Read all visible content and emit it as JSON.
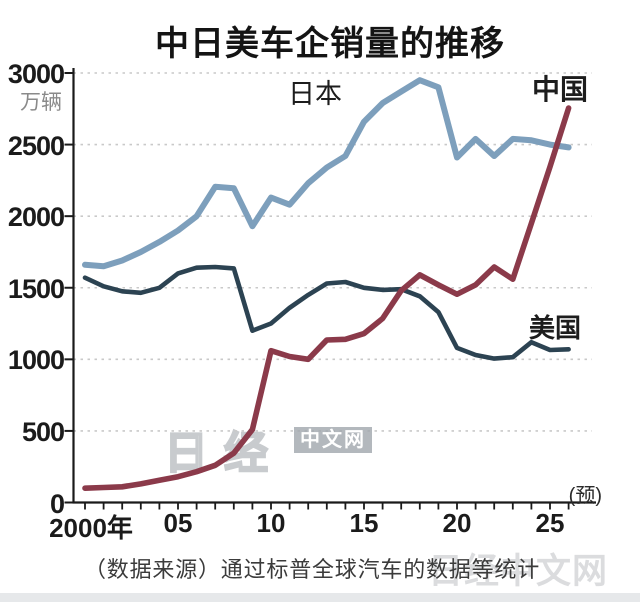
{
  "chart_data": {
    "type": "line",
    "title": "中日美车企销量的推移",
    "y_unit_label": "万辆",
    "ylim": [
      0,
      3000
    ],
    "y_ticks": [
      0,
      500,
      1000,
      1500,
      2000,
      2500,
      3000
    ],
    "x_tick_years": [
      2000,
      2005,
      2010,
      2015,
      2020,
      2025
    ],
    "x_tick_labels": [
      "2000年",
      "05",
      "10",
      "15",
      "20",
      "25"
    ],
    "forecast_note": "(预)",
    "years": [
      2000,
      2001,
      2002,
      2003,
      2004,
      2005,
      2006,
      2007,
      2008,
      2009,
      2010,
      2011,
      2012,
      2013,
      2014,
      2015,
      2016,
      2017,
      2018,
      2019,
      2020,
      2021,
      2022,
      2023,
      2024,
      2025,
      2026
    ],
    "series": [
      {
        "name": "日本",
        "color": "#7d9fbc",
        "values": [
          1660,
          1650,
          1690,
          1750,
          1820,
          1900,
          2000,
          2205,
          2195,
          1930,
          2130,
          2080,
          2230,
          2340,
          2420,
          2660,
          2790,
          2870,
          2950,
          2900,
          2410,
          2540,
          2420,
          2540,
          2530,
          2500,
          2480
        ]
      },
      {
        "name": "美国",
        "color": "#2c4352",
        "values": [
          1570,
          1510,
          1475,
          1465,
          1500,
          1600,
          1640,
          1645,
          1635,
          1200,
          1250,
          1360,
          1450,
          1530,
          1540,
          1500,
          1485,
          1490,
          1440,
          1330,
          1080,
          1030,
          1005,
          1015,
          1120,
          1065,
          1070
        ]
      },
      {
        "name": "中国",
        "color": "#8b3a4a",
        "values": [
          100,
          105,
          110,
          130,
          155,
          180,
          215,
          260,
          345,
          510,
          1060,
          1020,
          1000,
          1135,
          1140,
          1180,
          1285,
          1480,
          1590,
          1520,
          1455,
          1520,
          1645,
          1560,
          1950,
          2345,
          2755
        ]
      }
    ],
    "grid": "dotted-horizontal",
    "legend_position": "inline-labels"
  },
  "caption": "（数据来源）通过标普全球汽车的数据等统计",
  "watermark": {
    "outline_text": "日经",
    "box_text": "中文网",
    "caption_overlay_text": "日经中文网"
  },
  "labels": {
    "japan": "日本",
    "china": "中国",
    "us": "美国"
  }
}
